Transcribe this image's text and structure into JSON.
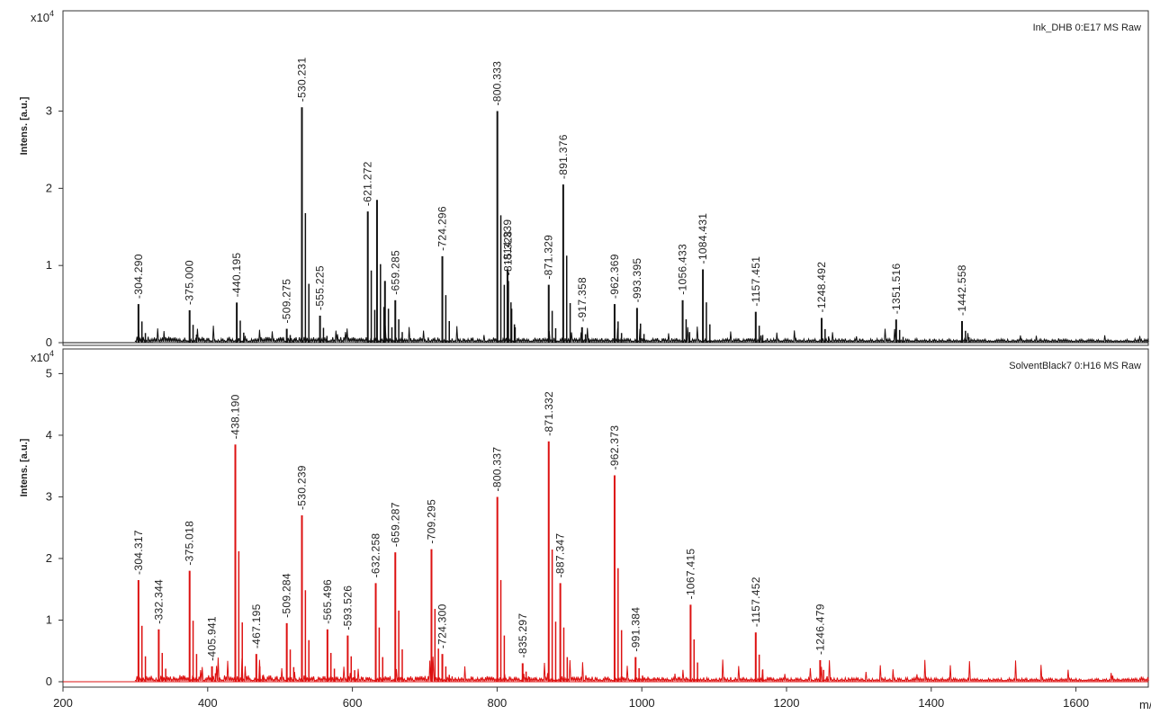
{
  "chart_data": [
    {
      "type": "line",
      "title": "Ink_DHB 0:E17 MS Raw",
      "ylabel": "Intens. [a.u.]",
      "y_exponent": "x10",
      "y_exponent_power": "4",
      "xlim": [
        200,
        1700
      ],
      "ylim": [
        0,
        4.3
      ],
      "ytick_labels": [
        "0",
        "1",
        "2",
        "3"
      ],
      "color": "#111111",
      "peaks": [
        {
          "x": 304.29,
          "y": 0.5,
          "label": "304.290"
        },
        {
          "x": 375.0,
          "y": 0.42,
          "label": "375.000"
        },
        {
          "x": 440.195,
          "y": 0.52,
          "label": "440.195"
        },
        {
          "x": 509.275,
          "y": 0.18,
          "label": "509.275"
        },
        {
          "x": 530.231,
          "y": 3.05,
          "label": "530.231"
        },
        {
          "x": 555.225,
          "y": 0.35,
          "label": "555.225"
        },
        {
          "x": 621.272,
          "y": 1.7,
          "label": "621.272"
        },
        {
          "x": 634.0,
          "y": 1.85,
          "label": ""
        },
        {
          "x": 645.0,
          "y": 0.8,
          "label": ""
        },
        {
          "x": 659.285,
          "y": 0.55,
          "label": "659.285"
        },
        {
          "x": 724.296,
          "y": 1.12,
          "label": "724.296"
        },
        {
          "x": 800.333,
          "y": 3.0,
          "label": "800.333"
        },
        {
          "x": 814.339,
          "y": 0.95,
          "label": "814.339"
        },
        {
          "x": 815.328,
          "y": 0.8,
          "label": "815.328"
        },
        {
          "x": 871.329,
          "y": 0.75,
          "label": "871.329"
        },
        {
          "x": 891.376,
          "y": 2.05,
          "label": "891.376"
        },
        {
          "x": 917.358,
          "y": 0.2,
          "label": "917.358"
        },
        {
          "x": 962.369,
          "y": 0.5,
          "label": "962.369"
        },
        {
          "x": 993.395,
          "y": 0.45,
          "label": "993.395"
        },
        {
          "x": 1056.433,
          "y": 0.55,
          "label": "1056.433"
        },
        {
          "x": 1084.431,
          "y": 0.95,
          "label": "1084.431"
        },
        {
          "x": 1157.451,
          "y": 0.4,
          "label": "1157.451"
        },
        {
          "x": 1248.492,
          "y": 0.32,
          "label": "1248.492"
        },
        {
          "x": 1351.516,
          "y": 0.3,
          "label": "1351.516"
        },
        {
          "x": 1442.558,
          "y": 0.28,
          "label": "1442.558"
        }
      ]
    },
    {
      "type": "line",
      "title": "SolventBlack7 0:H16 MS Raw",
      "ylabel": "Intens. [a.u.]",
      "y_exponent": "x10",
      "y_exponent_power": "4",
      "xlim": [
        200,
        1700
      ],
      "ylim": [
        0,
        5.4
      ],
      "ytick_labels": [
        "0",
        "1",
        "2",
        "3",
        "4",
        "5"
      ],
      "xtick_labels": [
        "200",
        "400",
        "600",
        "800",
        "1000",
        "1200",
        "1400",
        "1600"
      ],
      "xlabel": "m/z",
      "color": "#dd1111",
      "peaks": [
        {
          "x": 304.317,
          "y": 1.65,
          "label": "304.317"
        },
        {
          "x": 332.344,
          "y": 0.85,
          "label": "332.344"
        },
        {
          "x": 375.018,
          "y": 1.8,
          "label": "375.018"
        },
        {
          "x": 405.941,
          "y": 0.25,
          "label": "405.941"
        },
        {
          "x": 438.19,
          "y": 3.85,
          "label": "438.190"
        },
        {
          "x": 467.195,
          "y": 0.45,
          "label": "467.195"
        },
        {
          "x": 509.284,
          "y": 0.95,
          "label": "509.284"
        },
        {
          "x": 530.239,
          "y": 2.7,
          "label": "530.239"
        },
        {
          "x": 565.496,
          "y": 0.85,
          "label": "565.496"
        },
        {
          "x": 593.526,
          "y": 0.75,
          "label": "593.526"
        },
        {
          "x": 632.258,
          "y": 1.6,
          "label": "632.258"
        },
        {
          "x": 659.287,
          "y": 2.1,
          "label": "659.287"
        },
        {
          "x": 709.295,
          "y": 2.15,
          "label": "709.295"
        },
        {
          "x": 724.3,
          "y": 0.45,
          "label": "724.300"
        },
        {
          "x": 800.337,
          "y": 3.0,
          "label": "800.337"
        },
        {
          "x": 835.297,
          "y": 0.3,
          "label": "835.297"
        },
        {
          "x": 871.332,
          "y": 3.9,
          "label": "871.332"
        },
        {
          "x": 887.347,
          "y": 1.6,
          "label": "887.347"
        },
        {
          "x": 962.373,
          "y": 3.35,
          "label": "962.373"
        },
        {
          "x": 991.384,
          "y": 0.4,
          "label": "991.384"
        },
        {
          "x": 1067.415,
          "y": 1.25,
          "label": "1067.415"
        },
        {
          "x": 1157.452,
          "y": 0.8,
          "label": "1157.452"
        },
        {
          "x": 1246.479,
          "y": 0.35,
          "label": "1246.479"
        }
      ]
    }
  ]
}
